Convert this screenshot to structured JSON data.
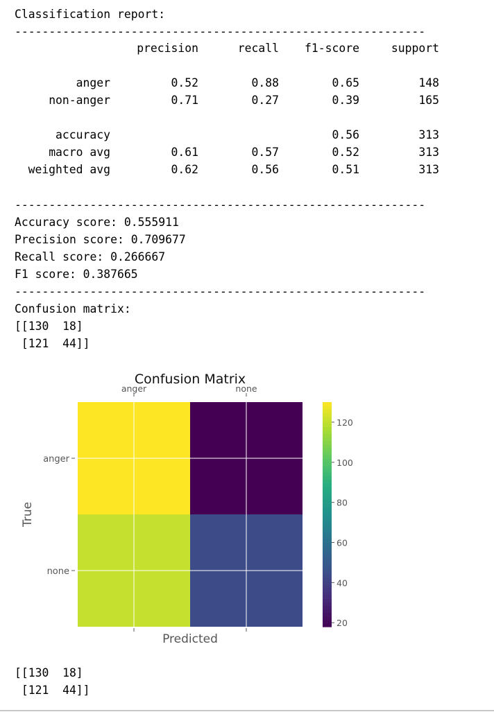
{
  "report": {
    "title": "Classification report:",
    "separator": "------------------------------------------------------------",
    "headers": [
      "precision",
      "recall",
      "f1-score",
      "support"
    ],
    "rows": [
      {
        "label": "anger",
        "precision": "0.52",
        "recall": "0.88",
        "f1": "0.65",
        "support": "148"
      },
      {
        "label": "non-anger",
        "precision": "0.71",
        "recall": "0.27",
        "f1": "0.39",
        "support": "165"
      }
    ],
    "summary_rows": [
      {
        "label": "accuracy",
        "precision": "",
        "recall": "",
        "f1": "0.56",
        "support": "313"
      },
      {
        "label": "macro avg",
        "precision": "0.61",
        "recall": "0.57",
        "f1": "0.52",
        "support": "313"
      },
      {
        "label": "weighted avg",
        "precision": "0.62",
        "recall": "0.56",
        "f1": "0.51",
        "support": "313"
      }
    ]
  },
  "scores": {
    "accuracy": "Accuracy score: 0.555911",
    "precision": "Precision score: 0.709677",
    "recall": "Recall score: 0.266667",
    "f1": "F1 score: 0.387665"
  },
  "confusion_text": {
    "label": "Confusion matrix:",
    "line1": "[[130  18]",
    "line2": " [121  44]]"
  },
  "final_output": {
    "line1": "[[130  18]",
    "line2": " [121  44]]"
  },
  "chart_data": {
    "type": "heatmap",
    "title": "Confusion Matrix",
    "xlabel": "Predicted",
    "ylabel": "True",
    "x_categories": [
      "anger",
      "none"
    ],
    "y_categories": [
      "anger",
      "none"
    ],
    "values": [
      [
        130,
        18
      ],
      [
        121,
        44
      ]
    ],
    "colormap": "viridis",
    "colorbar_ticks": [
      20,
      40,
      60,
      80,
      100,
      120
    ],
    "vmin": 18,
    "vmax": 130,
    "grid": true,
    "x_tick_position": "top",
    "colors": {
      "cell_130": "#fde725",
      "cell_121": "#cde11d",
      "cell_44": "#3d4e8a",
      "cell_18": "#440154",
      "grid": "#ffffff",
      "axis_text": "#555555"
    }
  }
}
